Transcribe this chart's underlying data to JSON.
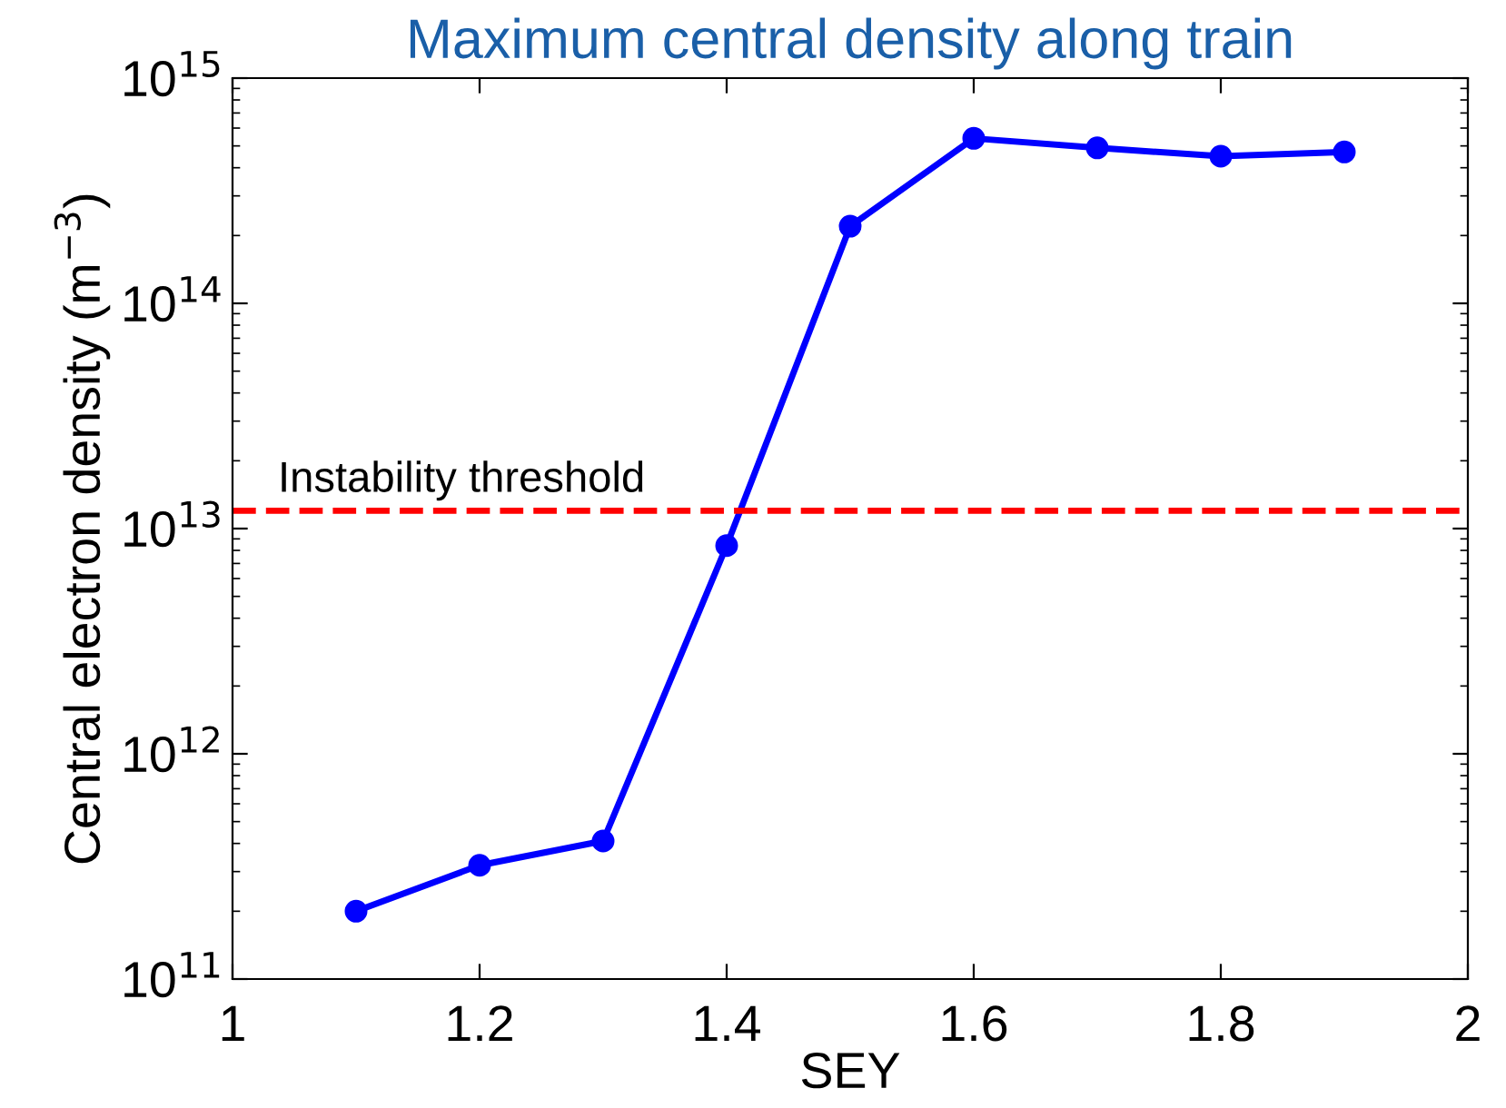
{
  "chart_data": {
    "type": "line",
    "title": "Maximum central density along train",
    "xlabel": "SEY",
    "ylabel": "Central electron density (m$^{−3}$)",
    "x": [
      1.1,
      1.2,
      1.3,
      1.4,
      1.5,
      1.6,
      1.7,
      1.8,
      1.9
    ],
    "series": [
      {
        "color": "#0000ff",
        "values": [
          200000000000.0,
          320000000000.0,
          410000000000.0,
          8400000000000.0,
          220000000000000.0,
          540000000000000.0,
          490000000000000.0,
          450000000000000.0,
          470000000000000.0
        ]
      }
    ],
    "log": "y",
    "marker": "circle",
    "line_style": "solid",
    "grid": false,
    "legend": false,
    "xlim": [
      1,
      2
    ],
    "xticks": [
      1,
      1.2,
      1.4,
      1.6,
      1.8,
      2
    ],
    "ylim": [
      100000000000.0,
      1000000000000000.0
    ],
    "yticks": [
      {
        "value": 100000000000.0,
        "label": "10$^{11}$"
      },
      {
        "value": 1000000000000.0,
        "label": "10$^{12}$"
      },
      {
        "value": 10000000000000.0,
        "label": "10$^{13}$"
      },
      {
        "value": 100000000000000.0,
        "label": "10$^{14}$"
      },
      {
        "value": 1000000000000000.0,
        "label": "10$^{15}$"
      }
    ],
    "ref_lines": [
      {
        "axis": "y",
        "value": 12000000000000.0,
        "label": "Instability threshold",
        "color": "#ff0000",
        "line_style": "dashed"
      }
    ]
  }
}
